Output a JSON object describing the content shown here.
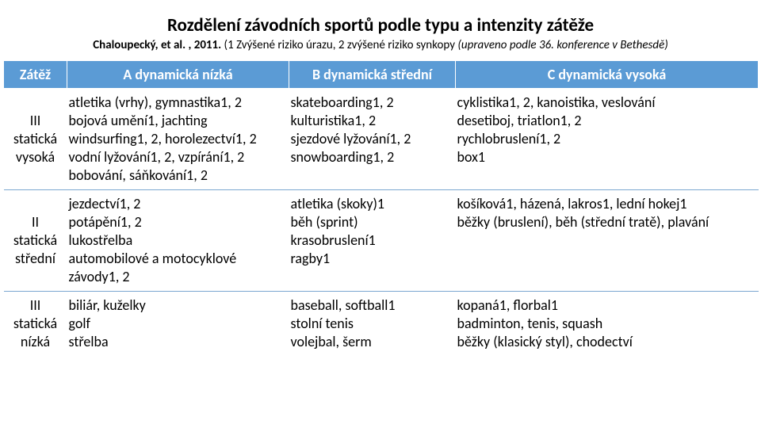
{
  "title": "Rozdělení závodních sportů podle typu a intenzity zátěže",
  "subtitle_bold": "Chaloupecký, et al. , 2011. ",
  "subtitle_rest": "(1 Zvýšené riziko úrazu, 2 zvýšené riziko synkopy ",
  "subtitle_italic": "(upraveno podle 36. konference v Bethesdě)",
  "headers": {
    "h0": "Zátěž",
    "h1": "A dynamická nízká",
    "h2": "B dynamická střední",
    "h3": "C dynamická vysoká"
  },
  "rows": {
    "r0": {
      "lab": "III\nstatická\nvysoká",
      "a": "atletika (vrhy), gymnastika1, 2\nbojová umění1, jachting\nwindsurfing1, 2, horolezectví1, 2\nvodní lyžování1, 2, vzpírání1, 2\nbobování, sáňkování1, 2",
      "b": "skateboarding1, 2\nkulturistika1, 2\nsjezdové lyžování1, 2\nsnowboarding1, 2",
      "c": "cyklistika1, 2, kanoistika, veslování\ndesetiboj, triatlon1, 2\nrychlobruslení1, 2\nbox1"
    },
    "r1": {
      "lab": "II\nstatická\nstřední",
      "a": "jezdectví1, 2\npotápění1, 2\nlukostřelba\nautomobilové a motocyklové závody1, 2",
      "b": "atletika (skoky)1\nběh (sprint)\nkrasobruslení1\nragby1",
      "c": "košíková1, házená, lakros1, lední hokej1\nběžky (bruslení), běh (střední tratě), plavání"
    },
    "r2": {
      "lab": "III\nstatická\nnízká",
      "a": "biliár, kuželky\ngolf\nstřelba",
      "b": "baseball, softball1\nstolní tenis\nvolejbal, šerm",
      "c": "kopaná1, florbal1\nbadminton, tenis, squash\nběžky (klasický styl), chodectví"
    }
  }
}
